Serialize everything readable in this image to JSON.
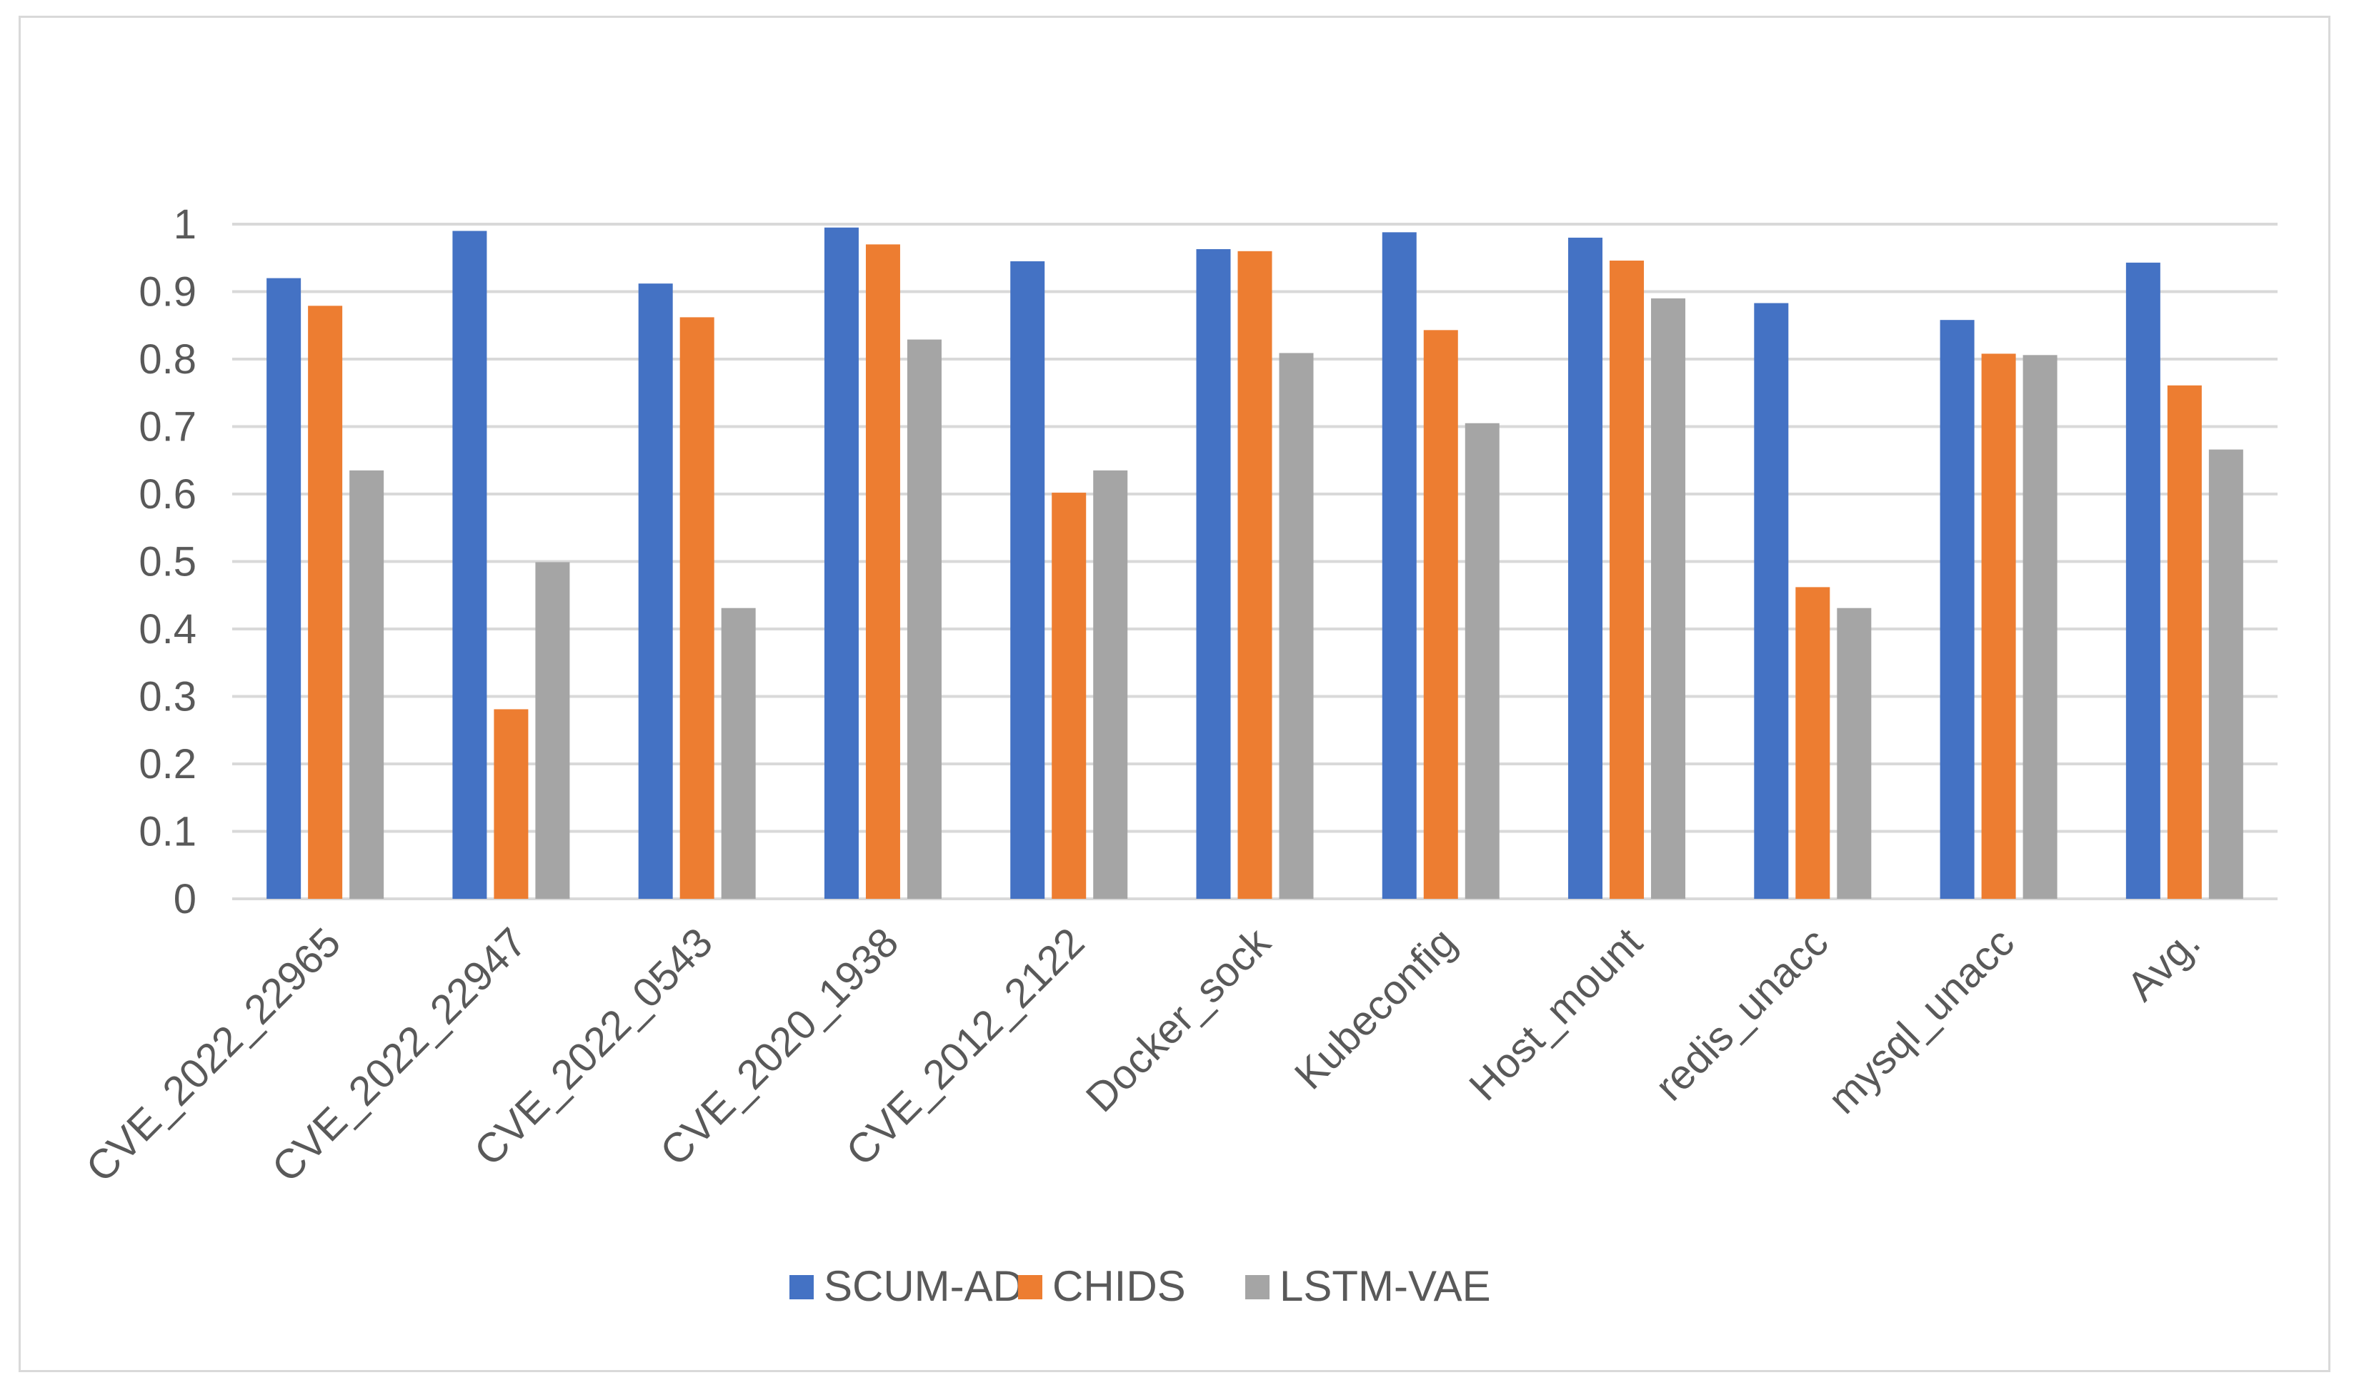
{
  "chart_data": {
    "type": "bar",
    "title": "",
    "xlabel": "",
    "ylabel": "",
    "ylim": [
      0,
      1
    ],
    "yticks": [
      "0",
      "0.1",
      "0.2",
      "0.3",
      "0.4",
      "0.5",
      "0.6",
      "0.7",
      "0.8",
      "0.9",
      "1"
    ],
    "grid": true,
    "legend_position": "bottom",
    "categories": [
      "CVE_2022_22965",
      "CVE_2022_22947",
      "CVE_2022_0543",
      "CVE_2020_1938",
      "CVE_2012_2122",
      "Docker_sock",
      "Kubeconfig",
      "Host_mount",
      "redis_unacc",
      "mysql_unacc",
      "Avg."
    ],
    "series": [
      {
        "name": "SCUM-AD",
        "color": "#4472c4",
        "values": [
          0.92,
          0.99,
          0.912,
          0.995,
          0.945,
          0.963,
          0.988,
          0.98,
          0.883,
          0.858,
          0.943
        ]
      },
      {
        "name": "CHIDS",
        "color": "#ed7d31",
        "values": [
          0.879,
          0.281,
          0.862,
          0.97,
          0.602,
          0.96,
          0.843,
          0.946,
          0.462,
          0.808,
          0.761
        ]
      },
      {
        "name": "LSTM-VAE",
        "color": "#a5a5a5",
        "values": [
          0.635,
          0.499,
          0.431,
          0.829,
          0.635,
          0.809,
          0.705,
          0.89,
          0.431,
          0.806,
          0.666
        ]
      }
    ]
  }
}
